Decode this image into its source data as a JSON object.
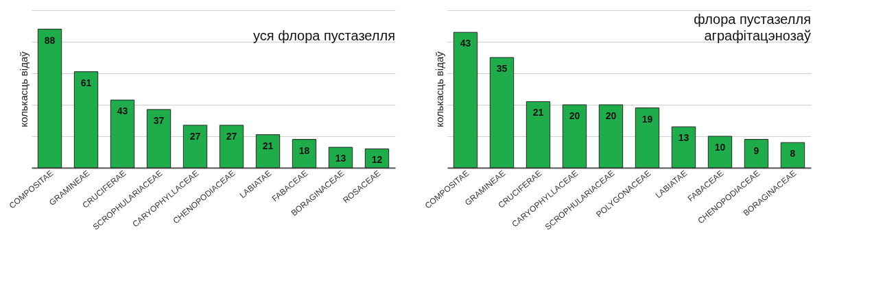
{
  "chart_data": [
    {
      "type": "bar",
      "title": "уся флора пустазелля",
      "ylabel": "колькасць відаў",
      "categories": [
        "COMPOSITAE",
        "GRAMINEAE",
        "CRUCIFERAE",
        "SCROPHULARIACEAE",
        "CARYOPHYLLACEAE",
        "CHENOPODIACEAE",
        "LABIATAE",
        "FABACEAE",
        "BORAGINACEAE",
        "ROSACEAE"
      ],
      "values": [
        88,
        61,
        43,
        37,
        27,
        27,
        21,
        18,
        13,
        12
      ],
      "color": "#1fad4b",
      "data_labels": true,
      "ylim": [
        0,
        100
      ],
      "yticks": [
        {
          "value": 0,
          "label": null
        },
        {
          "value": 20,
          "label": null
        },
        {
          "value": 40,
          "label": null
        },
        {
          "value": 60,
          "label": null
        },
        {
          "value": 80,
          "label": null
        },
        {
          "value": 100,
          "label": null
        }
      ],
      "grid": "y",
      "tick_labels": "x"
    },
    {
      "type": "bar",
      "title": "флора пустазелля\nаграфітацэнозаў",
      "ylabel": "колькасць відаў",
      "categories": [
        "COMPOSITAE",
        "GRAMINEAE",
        "CRUCIFERAE",
        "CARYOPHYLLACEAE",
        "SCROPHULARIACEAE",
        "POLYGONACEAE",
        "LABIATAE",
        "FABACEAE",
        "CHENOPODIACEAE",
        "BORAGINACEAE"
      ],
      "values": [
        43,
        35,
        21,
        20,
        20,
        19,
        13,
        10,
        9,
        8
      ],
      "color": "#1fad4b",
      "data_labels": true,
      "ylim": [
        0,
        50
      ],
      "yticks": [
        {
          "value": 0,
          "label": null
        },
        {
          "value": 10,
          "label": null
        },
        {
          "value": 20,
          "label": null
        },
        {
          "value": 30,
          "label": null
        },
        {
          "value": 40,
          "label": null
        },
        {
          "value": 50,
          "label": null
        }
      ],
      "grid": "y",
      "tick_labels": "x"
    }
  ]
}
